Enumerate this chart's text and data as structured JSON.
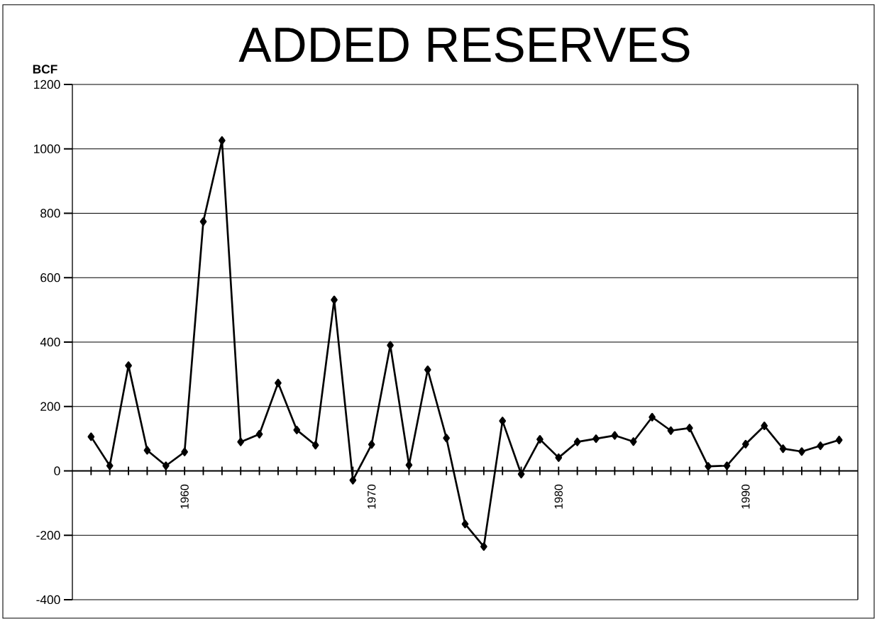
{
  "chart_data": {
    "type": "line",
    "title": "ADDED RESERVES",
    "ylabel": "BCF",
    "x": [
      1955,
      1956,
      1957,
      1958,
      1959,
      1960,
      1961,
      1962,
      1963,
      1964,
      1965,
      1966,
      1967,
      1968,
      1969,
      1970,
      1971,
      1972,
      1973,
      1974,
      1975,
      1976,
      1977,
      1978,
      1979,
      1980,
      1981,
      1982,
      1983,
      1984,
      1985,
      1986,
      1987,
      1988,
      1989,
      1990,
      1991,
      1992,
      1993,
      1994,
      1995
    ],
    "series": [
      {
        "color": "#000000",
        "values": [
          106,
          16,
          327,
          64,
          16,
          59,
          774,
          1026,
          90,
          114,
          273,
          127,
          80,
          531,
          -29,
          82,
          390,
          18,
          314,
          102,
          -165,
          -235,
          155,
          -10,
          98,
          41,
          90,
          100,
          110,
          91,
          167,
          125,
          133,
          14,
          16,
          83,
          140,
          69,
          60,
          78,
          96
        ]
      }
    ],
    "xlim": [
      1954,
      1996
    ],
    "ylim": [
      -400,
      1200
    ],
    "yticks": [
      -400,
      -200,
      0,
      200,
      400,
      600,
      800,
      1000,
      1200
    ],
    "xticks": [
      {
        "value": 1955,
        "label": null
      },
      {
        "value": 1956,
        "label": null
      },
      {
        "value": 1957,
        "label": null
      },
      {
        "value": 1958,
        "label": null
      },
      {
        "value": 1959,
        "label": null
      },
      1960,
      {
        "value": 1961,
        "label": null
      },
      {
        "value": 1962,
        "label": null
      },
      {
        "value": 1963,
        "label": null
      },
      {
        "value": 1964,
        "label": null
      },
      {
        "value": 1965,
        "label": null
      },
      {
        "value": 1966,
        "label": null
      },
      {
        "value": 1967,
        "label": null
      },
      {
        "value": 1968,
        "label": null
      },
      {
        "value": 1969,
        "label": null
      },
      1970,
      {
        "value": 1971,
        "label": null
      },
      {
        "value": 1972,
        "label": null
      },
      {
        "value": 1973,
        "label": null
      },
      {
        "value": 1974,
        "label": null
      },
      {
        "value": 1975,
        "label": null
      },
      {
        "value": 1976,
        "label": null
      },
      {
        "value": 1977,
        "label": null
      },
      {
        "value": 1978,
        "label": null
      },
      {
        "value": 1979,
        "label": null
      },
      1980,
      {
        "value": 1981,
        "label": null
      },
      {
        "value": 1982,
        "label": null
      },
      {
        "value": 1983,
        "label": null
      },
      {
        "value": 1984,
        "label": null
      },
      {
        "value": 1985,
        "label": null
      },
      {
        "value": 1986,
        "label": null
      },
      {
        "value": 1987,
        "label": null
      },
      {
        "value": 1988,
        "label": null
      },
      {
        "value": 1989,
        "label": null
      },
      1990,
      {
        "value": 1991,
        "label": null
      },
      {
        "value": 1992,
        "label": null
      },
      {
        "value": 1993,
        "label": null
      },
      {
        "value": 1994,
        "label": null
      },
      {
        "value": 1995,
        "label": null
      }
    ],
    "grid": "y",
    "marker": "diamond",
    "line_style": "solid"
  }
}
